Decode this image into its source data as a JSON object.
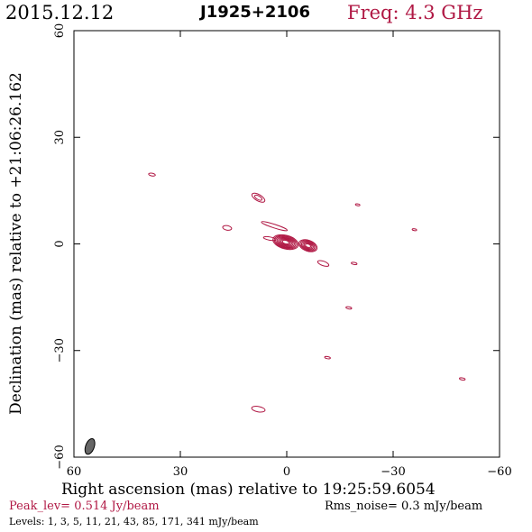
{
  "header": {
    "date": "2015.12.12",
    "source": "J1925+2106",
    "freq": "Freq: 4.3 GHz"
  },
  "footer": {
    "peak": "Peak_lev=  0.514 Jy/beam",
    "rms": "Rms_noise=  0.3 mJy/beam",
    "levels": "Levels:   1,   3,   5,   11,   21,   43,   85,  171,  341 mJy/beam"
  },
  "colors": {
    "contour": "#b01844",
    "beam": "#666666",
    "axis": "#000000"
  },
  "chart_data": {
    "type": "contour",
    "title": "J1925+2106",
    "xlabel": "Right ascension (mas) relative to 19:25:59.6054",
    "ylabel": "Declination (mas) relative to +21:06:26.162",
    "xlim": [
      60,
      -60
    ],
    "ylim": [
      -60,
      60
    ],
    "xticks": [
      60,
      30,
      0,
      -30,
      -60
    ],
    "yticks": [
      60,
      30,
      0,
      -30,
      -60
    ],
    "xtick_labels": [
      "60",
      "30",
      "0",
      "−30",
      "−60"
    ],
    "ytick_labels": [
      "60",
      "30",
      "0",
      "−30",
      "−60"
    ],
    "levels_mJy": [
      1,
      3,
      5,
      11,
      21,
      43,
      85,
      171,
      341
    ],
    "peak_Jy_per_beam": 0.514,
    "rms_mJy_per_beam": 0.3,
    "components": [
      {
        "ra": 0.3,
        "dec": 0.5,
        "levels": 8
      },
      {
        "ra": -6.0,
        "dec": -0.5,
        "levels": 6
      },
      {
        "ra": -10.3,
        "dec": -5.5,
        "levels": 1
      },
      {
        "ra": 3.5,
        "dec": 5.0,
        "levels": 1
      },
      {
        "ra": 4.8,
        "dec": 1.5,
        "levels": 1
      },
      {
        "ra": 8.0,
        "dec": 13.0,
        "levels": 2
      },
      {
        "ra": 16.8,
        "dec": 4.5,
        "levels": 1
      },
      {
        "ra": 38.0,
        "dec": 19.5,
        "levels": 1
      },
      {
        "ra": -20.0,
        "dec": 11.0,
        "levels": 1
      },
      {
        "ra": -36.0,
        "dec": 4.0,
        "levels": 1
      },
      {
        "ra": -19.0,
        "dec": -5.5,
        "levels": 1
      },
      {
        "ra": -17.5,
        "dec": -18.0,
        "levels": 1
      },
      {
        "ra": -11.5,
        "dec": -32.0,
        "levels": 1
      },
      {
        "ra": -49.5,
        "dec": -38.0,
        "levels": 1
      },
      {
        "ra": 8.0,
        "dec": -46.5,
        "levels": 1
      }
    ],
    "beam": {
      "ra": 55.5,
      "dec": -57.0,
      "major_mas": 4.0,
      "minor_mas": 2.0,
      "pa_deg": -20
    }
  }
}
